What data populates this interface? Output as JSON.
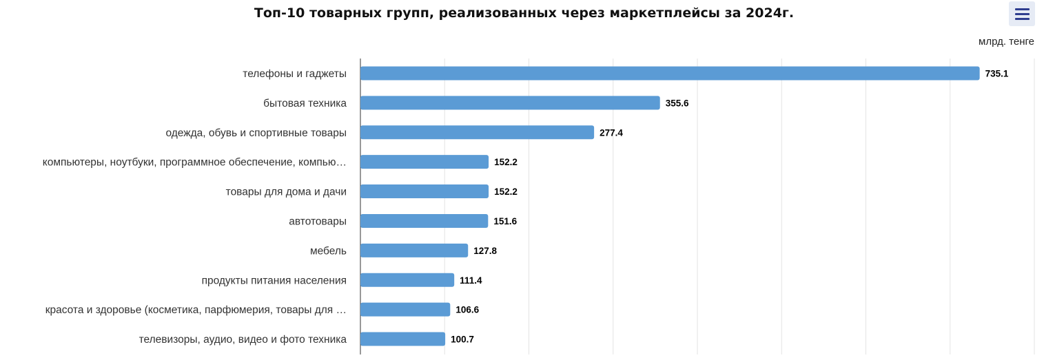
{
  "chart_data": {
    "type": "bar",
    "orientation": "horizontal",
    "title": "Топ-10 товарных групп, реализованных через маркетплейсы за 2024г.",
    "unit": "млрд. тенге",
    "categories": [
      "телефоны и гаджеты",
      "бытовая техника",
      "одежда, обувь и спортивные товары",
      "компьютеры, ноутбуки, программное обеспечение, компью…",
      "товары для дома и дачи",
      "автотовары",
      "мебель",
      "продукты питания населения",
      "красота и здоровье (косметика, парфюмерия, товары для …",
      "телевизоры, аудио, видео и фото техника"
    ],
    "values": [
      735.1,
      355.6,
      277.4,
      152.2,
      152.2,
      151.6,
      127.8,
      111.4,
      106.6,
      100.7
    ],
    "value_labels": [
      "735.1",
      "355.6",
      "277.4",
      "152.2",
      "152.2",
      "151.6",
      "127.8",
      "111.4",
      "106.6",
      "100.7"
    ],
    "xlim": [
      0,
      800
    ],
    "grid": true,
    "bar_color": "#5b9bd5"
  },
  "toolbar": {
    "menu_icon": "hamburger-menu-icon"
  }
}
